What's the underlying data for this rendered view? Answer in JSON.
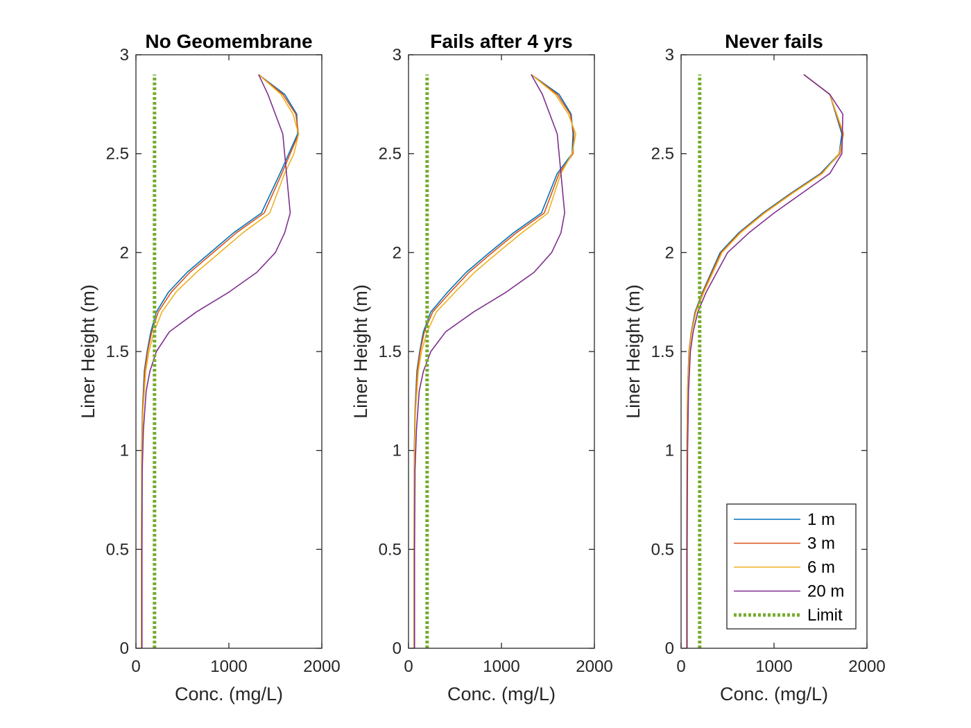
{
  "figure": {
    "background": "#ffffff"
  },
  "chart_data": [
    {
      "type": "line",
      "title": "No Geomembrane",
      "xlabel": "Conc. (mg/L)",
      "ylabel": "Liner Height (m)",
      "xlim": [
        0,
        2000
      ],
      "ylim": [
        0,
        3
      ],
      "xticks": [
        "0",
        "1000",
        "2000"
      ],
      "yticks": [
        "0",
        "0.5",
        "1",
        "1.5",
        "2",
        "2.5",
        "3"
      ],
      "grid": false,
      "series": [
        {
          "name": "1 m",
          "color": "#0072BD",
          "dash": "solid",
          "x": [
            60,
            60,
            62,
            70,
            90,
            120,
            160,
            220,
            350,
            550,
            800,
            1050,
            1350,
            1550,
            1740,
            1730,
            1600,
            1320
          ],
          "y": [
            0,
            0.5,
            1.0,
            1.2,
            1.4,
            1.5,
            1.6,
            1.7,
            1.8,
            1.9,
            2.0,
            2.1,
            2.2,
            2.4,
            2.6,
            2.7,
            2.8,
            2.9
          ]
        },
        {
          "name": "3 m",
          "color": "#D95319",
          "dash": "solid",
          "x": [
            60,
            60,
            63,
            72,
            95,
            125,
            170,
            240,
            380,
            580,
            830,
            1080,
            1380,
            1570,
            1750,
            1720,
            1580,
            1320
          ],
          "y": [
            0,
            0.5,
            1.0,
            1.2,
            1.4,
            1.5,
            1.6,
            1.7,
            1.8,
            1.9,
            2.0,
            2.1,
            2.2,
            2.4,
            2.6,
            2.7,
            2.8,
            2.9
          ]
        },
        {
          "name": "6 m",
          "color": "#EDB120",
          "dash": "solid",
          "x": [
            60,
            60,
            64,
            76,
            105,
            140,
            195,
            280,
            430,
            650,
            900,
            1150,
            1440,
            1600,
            1700,
            1750,
            1690,
            1560,
            1320
          ],
          "y": [
            0,
            0.5,
            1.0,
            1.2,
            1.4,
            1.5,
            1.6,
            1.7,
            1.8,
            1.9,
            2.0,
            2.1,
            2.2,
            2.4,
            2.5,
            2.6,
            2.7,
            2.8,
            2.9
          ]
        },
        {
          "name": "20 m",
          "color": "#7E2F8E",
          "dash": "solid",
          "x": [
            65,
            65,
            68,
            80,
            110,
            150,
            220,
            360,
            650,
            1000,
            1300,
            1500,
            1600,
            1660,
            1640,
            1580,
            1420,
            1320
          ],
          "y": [
            0,
            0.5,
            0.9,
            1.1,
            1.3,
            1.4,
            1.5,
            1.6,
            1.7,
            1.8,
            1.9,
            2.0,
            2.1,
            2.2,
            2.3,
            2.6,
            2.8,
            2.9
          ]
        },
        {
          "name": "Limit",
          "color": "#77AC30",
          "dash": "dotted",
          "x": [
            200,
            200
          ],
          "y": [
            0,
            2.9
          ]
        }
      ]
    },
    {
      "type": "line",
      "title": "Fails after 4 yrs",
      "xlabel": "Conc. (mg/L)",
      "ylabel": "Liner Height (m)",
      "xlim": [
        0,
        2000
      ],
      "ylim": [
        0,
        3
      ],
      "xticks": [
        "0",
        "1000",
        "2000"
      ],
      "yticks": [
        "0",
        "0.5",
        "1",
        "1.5",
        "2",
        "2.5",
        "3"
      ],
      "grid": false,
      "series": [
        {
          "name": "1 m",
          "color": "#0072BD",
          "dash": "solid",
          "x": [
            60,
            60,
            62,
            70,
            90,
            120,
            160,
            240,
            420,
            620,
            870,
            1130,
            1430,
            1600,
            1760,
            1770,
            1750,
            1620,
            1320
          ],
          "y": [
            0,
            0.5,
            1.0,
            1.2,
            1.4,
            1.5,
            1.6,
            1.7,
            1.8,
            1.9,
            2.0,
            2.1,
            2.2,
            2.4,
            2.5,
            2.6,
            2.7,
            2.8,
            2.9
          ]
        },
        {
          "name": "3 m",
          "color": "#D95319",
          "dash": "solid",
          "x": [
            60,
            60,
            63,
            72,
            95,
            125,
            170,
            260,
            450,
            650,
            900,
            1160,
            1460,
            1620,
            1770,
            1780,
            1740,
            1600,
            1320
          ],
          "y": [
            0,
            0.5,
            1.0,
            1.2,
            1.4,
            1.5,
            1.6,
            1.7,
            1.8,
            1.9,
            2.0,
            2.1,
            2.2,
            2.4,
            2.5,
            2.6,
            2.7,
            2.8,
            2.9
          ]
        },
        {
          "name": "6 m",
          "color": "#EDB120",
          "dash": "solid",
          "x": [
            60,
            60,
            64,
            76,
            105,
            140,
            200,
            300,
            500,
            710,
            960,
            1220,
            1500,
            1640,
            1760,
            1800,
            1720,
            1580,
            1320
          ],
          "y": [
            0,
            0.5,
            1.0,
            1.2,
            1.4,
            1.5,
            1.6,
            1.7,
            1.8,
            1.9,
            2.0,
            2.1,
            2.2,
            2.4,
            2.5,
            2.6,
            2.7,
            2.8,
            2.9
          ]
        },
        {
          "name": "20 m",
          "color": "#7E2F8E",
          "dash": "solid",
          "x": [
            65,
            65,
            70,
            85,
            115,
            160,
            240,
            400,
            700,
            1050,
            1350,
            1540,
            1640,
            1680,
            1660,
            1600,
            1440,
            1320
          ],
          "y": [
            0,
            0.5,
            0.9,
            1.1,
            1.3,
            1.4,
            1.5,
            1.6,
            1.7,
            1.8,
            1.9,
            2.0,
            2.1,
            2.2,
            2.3,
            2.6,
            2.8,
            2.9
          ]
        },
        {
          "name": "Limit",
          "color": "#77AC30",
          "dash": "dotted",
          "x": [
            200,
            200
          ],
          "y": [
            0,
            2.9
          ]
        }
      ]
    },
    {
      "type": "line",
      "title": "Never fails",
      "xlabel": "Conc. (mg/L)",
      "ylabel": "Liner Height (m)",
      "xlim": [
        0,
        2000
      ],
      "ylim": [
        0,
        3
      ],
      "xticks": [
        "0",
        "1000",
        "2000"
      ],
      "yticks": [
        "0",
        "0.5",
        "1",
        "1.5",
        "2",
        "2.5",
        "3"
      ],
      "grid": false,
      "legend": {
        "position": "bottom-right",
        "entries": [
          "1 m",
          "3 m",
          "6 m",
          "20 m",
          "Limit"
        ]
      },
      "series": [
        {
          "name": "1 m",
          "color": "#0072BD",
          "dash": "solid",
          "x": [
            60,
            60,
            62,
            70,
            85,
            110,
            150,
            230,
            420,
            620,
            880,
            1180,
            1500,
            1700,
            1730,
            1600,
            1320
          ],
          "y": [
            0,
            0.5,
            1.0,
            1.3,
            1.5,
            1.6,
            1.7,
            1.8,
            2.0,
            2.1,
            2.2,
            2.3,
            2.4,
            2.5,
            2.6,
            2.8,
            2.9
          ]
        },
        {
          "name": "3 m",
          "color": "#D95319",
          "dash": "solid",
          "x": [
            60,
            60,
            62,
            70,
            85,
            112,
            155,
            235,
            430,
            630,
            890,
            1190,
            1510,
            1710,
            1740,
            1600,
            1320
          ],
          "y": [
            0,
            0.5,
            1.0,
            1.3,
            1.5,
            1.6,
            1.7,
            1.8,
            2.0,
            2.1,
            2.2,
            2.3,
            2.4,
            2.5,
            2.6,
            2.8,
            2.9
          ]
        },
        {
          "name": "6 m",
          "color": "#EDB120",
          "dash": "solid",
          "x": [
            60,
            60,
            63,
            72,
            88,
            115,
            160,
            245,
            440,
            640,
            900,
            1200,
            1520,
            1700,
            1750,
            1600,
            1320
          ],
          "y": [
            0,
            0.5,
            1.0,
            1.3,
            1.5,
            1.6,
            1.7,
            1.8,
            2.0,
            2.1,
            2.2,
            2.3,
            2.4,
            2.5,
            2.6,
            2.8,
            2.9
          ]
        },
        {
          "name": "20 m",
          "color": "#7E2F8E",
          "dash": "solid",
          "x": [
            65,
            65,
            70,
            80,
            100,
            130,
            180,
            270,
            500,
            730,
            1000,
            1300,
            1600,
            1730,
            1740,
            1600,
            1320
          ],
          "y": [
            0,
            0.5,
            1.0,
            1.3,
            1.5,
            1.6,
            1.7,
            1.8,
            2.0,
            2.1,
            2.2,
            2.3,
            2.4,
            2.5,
            2.7,
            2.8,
            2.9
          ]
        },
        {
          "name": "Limit",
          "color": "#77AC30",
          "dash": "dotted",
          "x": [
            200,
            200
          ],
          "y": [
            0,
            2.9
          ]
        }
      ]
    }
  ]
}
